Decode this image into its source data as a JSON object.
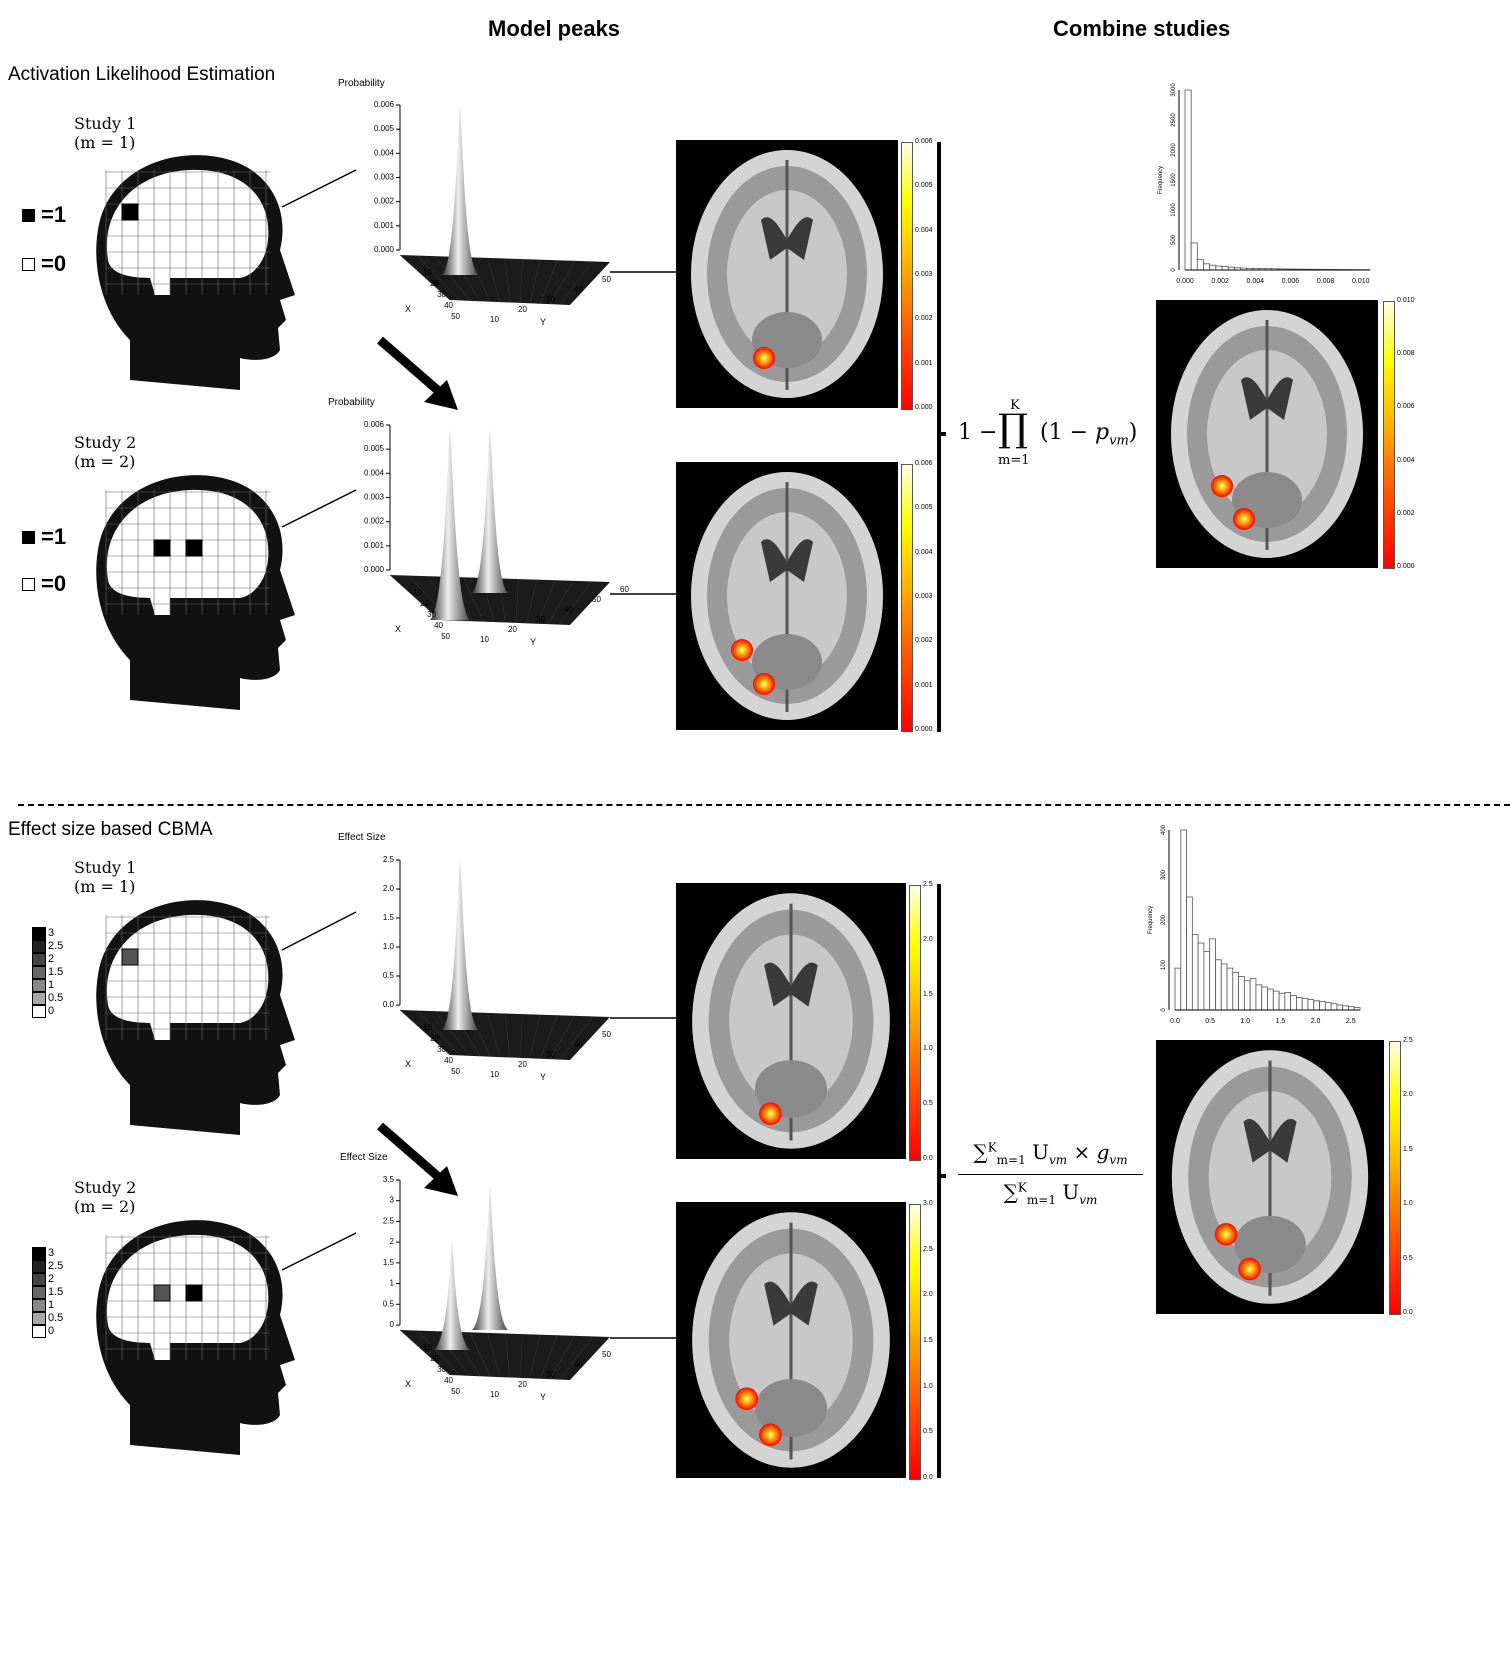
{
  "headers": {
    "model_peaks": "Model peaks",
    "combine_studies": "Combine studies"
  },
  "ale": {
    "title": "Activation Likelihood Estimation",
    "study1": {
      "name": "Study 1",
      "m": "(m = 1)"
    },
    "study2": {
      "name": "Study 2",
      "m": "(m = 2)"
    },
    "legend_on": "=1",
    "legend_off": "=0",
    "zlabel": "Probability",
    "z_ticks_1": [
      "0.006",
      "0.005",
      "0.004",
      "0.003",
      "0.002",
      "0.001",
      "0.000"
    ],
    "z_ticks_2": [
      "0.006",
      "0.005",
      "0.004",
      "0.003",
      "0.002",
      "0.001",
      "0.000"
    ],
    "x_ticks": [
      "10",
      "20",
      "30",
      "40",
      "50"
    ],
    "y_ticks": [
      "10",
      "20",
      "30",
      "40",
      "50",
      "60"
    ],
    "x_axis": "X",
    "y_axis": "Y",
    "cbar1": [
      "0.006",
      "0.005",
      "0.004",
      "0.003",
      "0.002",
      "0.001",
      "0.000"
    ],
    "cbar2": [
      "0.006",
      "0.005",
      "0.004",
      "0.003",
      "0.002",
      "0.001",
      "0.000"
    ],
    "formula": "1 − ∏ (1 − p_vm)",
    "formula_upper": "K",
    "formula_lower": "m=1",
    "hist_ylabel": "Frequency",
    "hist_yticks": [
      "3000",
      "2500",
      "2000",
      "1500",
      "1000",
      "500",
      "0"
    ],
    "hist_xticks": [
      "0.000",
      "0.002",
      "0.004",
      "0.006",
      "0.008",
      "0.010"
    ],
    "hist_bins": [
      3200,
      480,
      190,
      110,
      85,
      70,
      60,
      50,
      40,
      35,
      30,
      28,
      26,
      24,
      22,
      20,
      18,
      16,
      15,
      14,
      13,
      12,
      11,
      10,
      9,
      8,
      7,
      6,
      5,
      5
    ],
    "cbar_combined": [
      "0.010",
      "0.008",
      "0.006",
      "0.004",
      "0.002",
      "0.000"
    ]
  },
  "es": {
    "title": "Effect size based CBMA",
    "study1": {
      "name": "Study 1",
      "m": "(m = 1)"
    },
    "study2": {
      "name": "Study 2",
      "m": "(m = 2)"
    },
    "grayscale_labels": [
      "3",
      "2.5",
      "2",
      "1.5",
      "1",
      "0.5",
      "0"
    ],
    "zlabel": "Effect Size",
    "z_ticks_1": [
      "2.5",
      "2.0",
      "1.5",
      "1.0",
      "0.5",
      "0.0"
    ],
    "z_ticks_2": [
      "3.5",
      "3",
      "2.5",
      "2",
      "1.5",
      "1",
      "0.5",
      "0"
    ],
    "x_ticks": [
      "10",
      "20",
      "30",
      "40",
      "50"
    ],
    "y_ticks": [
      "10",
      "20",
      "30",
      "40",
      "50",
      "60"
    ],
    "x_axis": "X",
    "y_axis": "Y",
    "cbar1": [
      "2.5",
      "2.0",
      "1.5",
      "1.0",
      "0.5",
      "0.0"
    ],
    "cbar2": [
      "3.0",
      "2.5",
      "2.0",
      "1.5",
      "1.0",
      "0.5",
      "0.0"
    ],
    "formula_num": "∑ U_vm × g_vm",
    "formula_den": "∑ U_vm",
    "formula_upper": "K",
    "formula_lower": "m=1",
    "hist_ylabel": "Frequency",
    "hist_yticks": [
      "400",
      "300",
      "200",
      "100",
      "0"
    ],
    "hist_xticks": [
      "0.0",
      "0.5",
      "1.0",
      "1.5",
      "2.0",
      "2.5"
    ],
    "hist_bins": [
      100,
      430,
      270,
      180,
      160,
      140,
      170,
      120,
      110,
      100,
      90,
      80,
      70,
      75,
      60,
      55,
      50,
      45,
      40,
      42,
      35,
      30,
      28,
      25,
      22,
      20,
      18,
      15,
      12,
      10,
      8,
      6
    ],
    "cbar_combined": [
      "2.5",
      "2.0",
      "1.5",
      "1.0",
      "0.5",
      "0.0"
    ]
  }
}
